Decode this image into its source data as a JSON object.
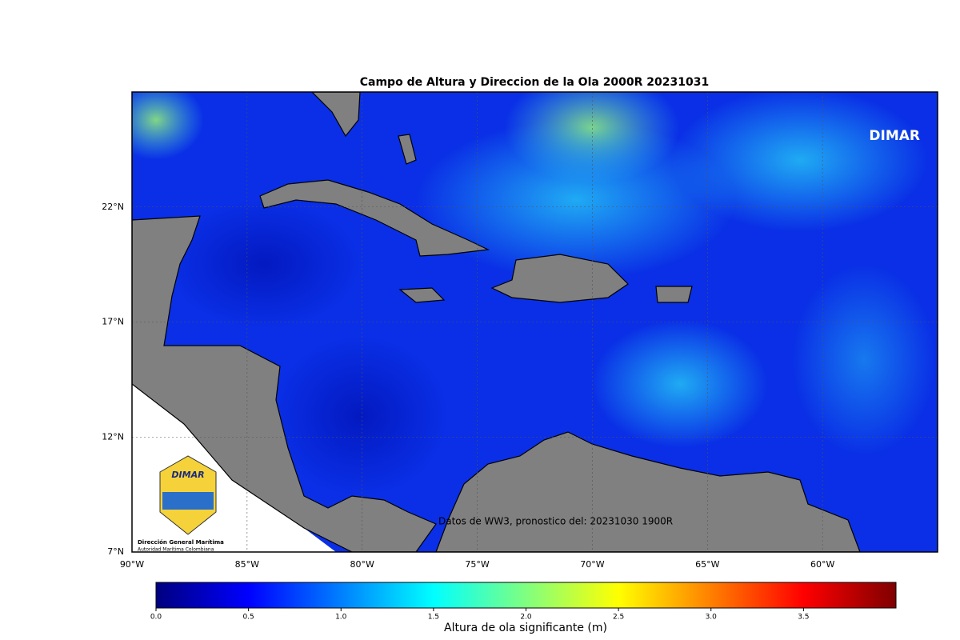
{
  "map": {
    "title": "Campo de Altura y Direccion de la Ola 2000R 20231031",
    "watermark_label": "DIMAR",
    "source_note": "Datos de WW3, pronostico del: 20231030 1900R",
    "logo": {
      "brand": "DIMAR",
      "name": "Dirección General Marítima",
      "subtitle": "Autoridad Marítima Colombiana"
    },
    "lonlim": [
      -90,
      -55
    ],
    "latlim": [
      7,
      27
    ],
    "lonticks": [
      {
        "value": -90,
        "label": "90°W"
      },
      {
        "value": -85,
        "label": "85°W"
      },
      {
        "value": -80,
        "label": "80°W"
      },
      {
        "value": -75,
        "label": "75°W"
      },
      {
        "value": -70,
        "label": "70°W"
      },
      {
        "value": -65,
        "label": "65°W"
      },
      {
        "value": -60,
        "label": "60°W"
      }
    ],
    "latticks": [
      {
        "value": 7,
        "label": "7°N"
      },
      {
        "value": 12,
        "label": "12°N"
      },
      {
        "value": 17,
        "label": "17°N"
      },
      {
        "value": 22,
        "label": "22°N"
      }
    ],
    "grid": true,
    "colorbar": {
      "label": "Altura de ola significante (m)",
      "colormap": "jet",
      "lim": [
        0,
        4
      ],
      "ticks": [
        {
          "value": 0,
          "label": "0.0"
        },
        0.5,
        {
          "value": 1,
          "label": "1.0"
        },
        1.5,
        {
          "value": 2,
          "label": "2.0"
        },
        2.5,
        {
          "value": 3,
          "label": "3.0"
        },
        3.5
      ]
    }
  }
}
